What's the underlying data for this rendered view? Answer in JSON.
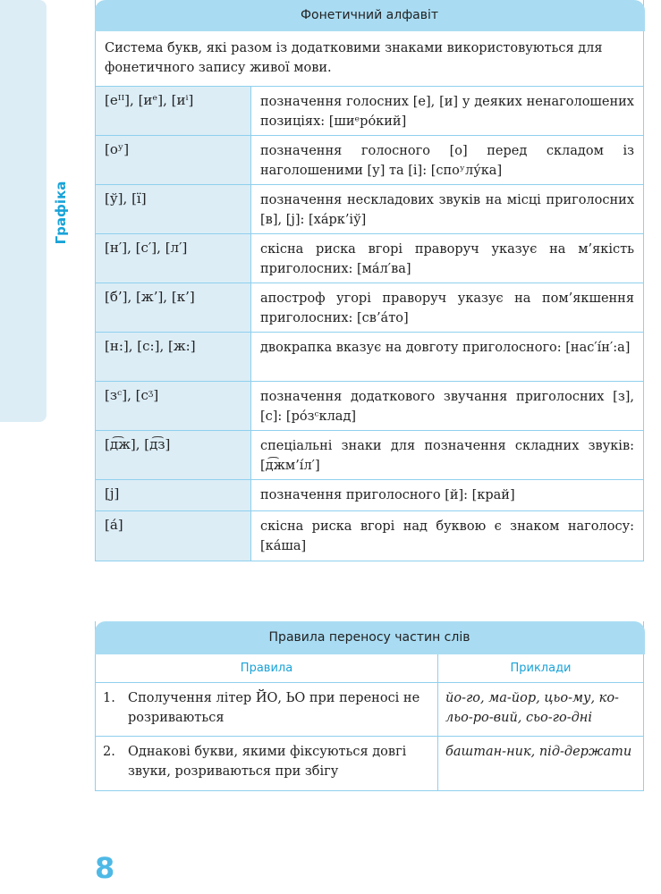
{
  "side_tab": {
    "label": "Графіка"
  },
  "alphabet": {
    "title": "Фонетичний алфавіт",
    "intro": "Система букв, які разом із додатковими знаками використовуються для фонетичного запису живої мови.",
    "rows": [
      {
        "symbol": "[еᴵᴵ], [иᵉ], [иⁱ]",
        "desc": "позначення голосних [е], [и] у деяких ненаголошених позиціях: [шиᵉро́кий]"
      },
      {
        "symbol": "[оʸ]",
        "desc": "позначення голосного [о] перед складом із наголошеними [у] та [і]: [споʸлу́ка]"
      },
      {
        "symbol": "[ў], [ї]",
        "desc": "позначення нескладових звуків на місці приголосних [в], [j]: [ха́рк’іў]"
      },
      {
        "symbol": "[н′], [с′], [л′]",
        "desc": "скісна риска вгорі праворуч указує на м’якість приголосних: [ма́л′ва]"
      },
      {
        "symbol": "[б’], [ж’], [к’]",
        "desc": "апостроф угорі праворуч указує на пом’якшення приголосних: [св’а́то]"
      },
      {
        "symbol": "[н:], [с:], [ж:]",
        "desc": "двокрапка вказує на довготу приголосного: [нас′і́н′:а]"
      },
      {
        "symbol": "[зᶜ], [сᶾ]",
        "desc": "позначення додаткового звучання приголосних [з], [с]: [ро́зᶜклад]"
      },
      {
        "symbol": "[д͡ж], [д͡з]",
        "desc": "спеціальні знаки для позначення складних звуків: [д͡жм’і́л′]"
      },
      {
        "symbol": "[j]",
        "desc": "позначення приголосного [й]: [край]"
      },
      {
        "symbol": "[а́]",
        "desc": "скісна риска вгорі над буквою є знаком наголосу: [ка́ша]"
      }
    ]
  },
  "hyphenation": {
    "title": "Правила переносу частин слів",
    "col_rules": "Правила",
    "col_examples": "Приклади",
    "rows": [
      {
        "num": "1.",
        "rule": "Сполучення літер ЙО, ЬО при переносі не розриваються",
        "example": "йо-го, ма-йор, цьо-му, ко-льо-ро-вий, сьо-го-дні"
      },
      {
        "num": "2.",
        "rule": "Однакові букви, якими фіксуються довгі звуки, розриваються при збігу",
        "example": "баштан-ник, під-держати"
      }
    ]
  },
  "page_number": "8",
  "colors": {
    "accent": "#19a3d8",
    "header_bg": "#a9dcf3",
    "light_bg": "#dcedf6",
    "border": "#8fd0ee"
  }
}
